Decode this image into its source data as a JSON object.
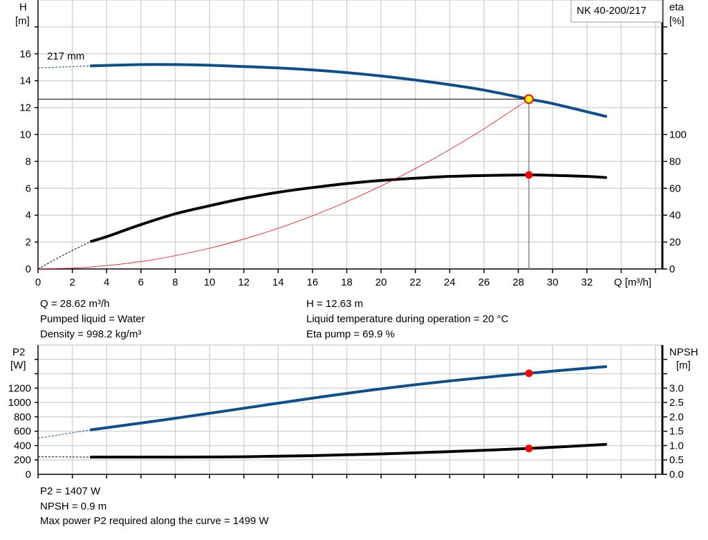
{
  "chart_data": [
    {
      "type": "line",
      "title": "NK 40-200/217",
      "xlabel": "Q [m³/h]",
      "ylabel": [
        "H",
        "[m]"
      ],
      "ylabel_right": [
        "eta",
        "[%]"
      ],
      "xlim": [
        0,
        36.4
      ],
      "ylim": [
        0,
        20
      ],
      "ylim_right": [
        0,
        200
      ],
      "x_ticks": [
        0,
        2,
        4,
        6,
        8,
        10,
        12,
        14,
        16,
        18,
        20,
        22,
        24,
        26,
        28,
        30,
        32
      ],
      "y_ticks": [
        0,
        2,
        4,
        6,
        8,
        10,
        12,
        14,
        16
      ],
      "y_right_ticks": [
        0,
        20,
        40,
        60,
        80,
        100
      ],
      "grid": true,
      "annotation": "217 mm",
      "duty_point": {
        "q": 28.62,
        "h": 12.63,
        "eta": 69.9
      },
      "series": [
        {
          "key": "H",
          "axis": "left",
          "color": "#0d4f8b",
          "points": [
            [
              3.1,
              15.1
            ],
            [
              6,
              15.2
            ],
            [
              8,
              15.2
            ],
            [
              10,
              15.15
            ],
            [
              12,
              15.05
            ],
            [
              14,
              14.95
            ],
            [
              16,
              14.8
            ],
            [
              18,
              14.6
            ],
            [
              20,
              14.35
            ],
            [
              22,
              14.05
            ],
            [
              24,
              13.7
            ],
            [
              26,
              13.3
            ],
            [
              28.62,
              12.63
            ],
            [
              30,
              12.3
            ],
            [
              33.1,
              11.35
            ]
          ],
          "extrapolated": [
            [
              0,
              14.95
            ],
            [
              3.1,
              15.1
            ]
          ]
        },
        {
          "key": "eta",
          "axis": "right",
          "color": "#000000",
          "points": [
            [
              3.1,
              20.5
            ],
            [
              4,
              24
            ],
            [
              6,
              33
            ],
            [
              8,
              41
            ],
            [
              10,
              47
            ],
            [
              12,
              52.5
            ],
            [
              14,
              57
            ],
            [
              16,
              60.5
            ],
            [
              18,
              63.5
            ],
            [
              20,
              65.8
            ],
            [
              22,
              67.5
            ],
            [
              24,
              68.8
            ],
            [
              26,
              69.5
            ],
            [
              28.62,
              69.9
            ],
            [
              30,
              69.6
            ],
            [
              32,
              68.8
            ],
            [
              33.1,
              68
            ]
          ],
          "extrapolated": [
            [
              0,
              0
            ],
            [
              1.5,
              10.5
            ],
            [
              3.1,
              20.5
            ]
          ]
        },
        {
          "key": "system",
          "axis": "left",
          "color": "#ff0000",
          "points": [
            [
              0,
              0
            ],
            [
              2,
              0.06
            ],
            [
              4,
              0.25
            ],
            [
              6,
              0.55
            ],
            [
              8,
              0.99
            ],
            [
              10,
              1.54
            ],
            [
              12,
              2.22
            ],
            [
              14,
              3.02
            ],
            [
              16,
              3.95
            ],
            [
              18,
              5.0
            ],
            [
              20,
              6.17
            ],
            [
              22,
              7.46
            ],
            [
              24,
              8.88
            ],
            [
              26,
              10.42
            ],
            [
              28.62,
              12.63
            ]
          ]
        }
      ]
    },
    {
      "type": "line",
      "ylabel": [
        "P2",
        "[W]"
      ],
      "ylabel_right": [
        "NPSH",
        "[m]"
      ],
      "xlim": [
        0,
        36.4
      ],
      "ylim": [
        0,
        1800
      ],
      "ylim_right": [
        0,
        4.5
      ],
      "y_ticks": [
        0,
        200,
        400,
        600,
        800,
        1000,
        1200
      ],
      "y_right_ticks": [
        "0.0",
        "0.5",
        "1.0",
        "1.5",
        "2.0",
        "2.5",
        "3.0"
      ],
      "grid": true,
      "duty_point": {
        "q": 28.62,
        "p2": 1407,
        "npsh": 0.9
      },
      "series": [
        {
          "key": "P2",
          "axis": "left",
          "color": "#0d4f8b",
          "points": [
            [
              3.1,
              620
            ],
            [
              8,
              780
            ],
            [
              12,
              920
            ],
            [
              16,
              1060
            ],
            [
              20,
              1190
            ],
            [
              24,
              1300
            ],
            [
              28.62,
              1407
            ],
            [
              33.1,
              1499
            ]
          ],
          "extrapolated": [
            [
              0,
              503
            ],
            [
              3.1,
              620
            ]
          ]
        },
        {
          "key": "NPSH",
          "axis": "right",
          "color": "#000000",
          "points": [
            [
              3.1,
              0.6
            ],
            [
              8,
              0.6
            ],
            [
              12,
              0.61
            ],
            [
              16,
              0.65
            ],
            [
              20,
              0.71
            ],
            [
              24,
              0.79
            ],
            [
              28.62,
              0.9
            ],
            [
              33.1,
              1.04
            ]
          ],
          "extrapolated": [
            [
              0,
              0.61
            ],
            [
              3.1,
              0.6
            ]
          ]
        }
      ]
    }
  ],
  "info_top": {
    "q": "Q = 28.62 m³/h",
    "liquid": "Pumped liquid = Water",
    "density": "Density = 998.2 kg/m³",
    "h": "H = 12.63 m",
    "temp": "Liquid temperature during operation = 20 °C",
    "eta": "Eta pump = 69.9 %"
  },
  "info_bottom": {
    "p2": "P2 = 1407 W",
    "npsh": "NPSH = 0.9 m",
    "max_p2": "Max power P2 required along the curve = 1499 W"
  }
}
